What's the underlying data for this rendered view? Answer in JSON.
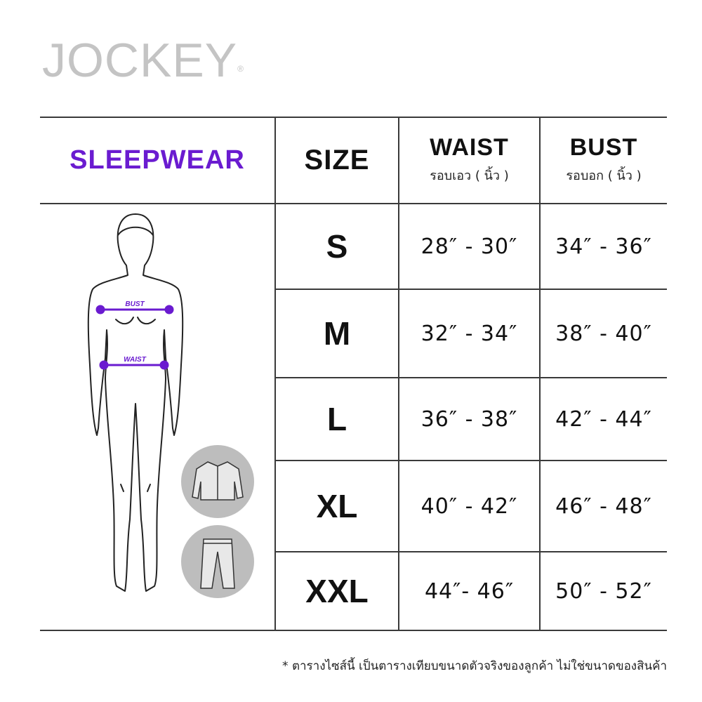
{
  "brand": {
    "logo": "JOCKEY",
    "registered": "®"
  },
  "table": {
    "category": "SLEEPWEAR",
    "headers": [
      {
        "label": "SIZE"
      },
      {
        "label": "WAIST",
        "sub": "รอบเอว ( นิ้ว )"
      },
      {
        "label": "BUST",
        "sub": "รอบอก ( นิ้ว )"
      }
    ],
    "rows": [
      {
        "size": "S",
        "waist": "28″ - 30″",
        "bust": "34″ - 36″"
      },
      {
        "size": "M",
        "waist": "32″ - 34″",
        "bust": "38″ - 40″"
      },
      {
        "size": "L",
        "waist": "36″ - 38″",
        "bust": "42″ - 44″"
      },
      {
        "size": "XL",
        "waist": "40″ - 42″",
        "bust": "46″ - 48″"
      },
      {
        "size": "XXL",
        "waist": "44″-  46″",
        "bust": "50″ - 52″"
      }
    ]
  },
  "figure": {
    "bust_label": "BUST",
    "waist_label": "WAIST",
    "icons": [
      "shirt-icon",
      "pants-icon"
    ]
  },
  "footnote": "* ตารางไซส์นี้ เป็นตารางเทียบขนาดตัวจริงของลูกค้า ไม่ใช่ขนาดของสินค้า",
  "colors": {
    "accent": "#6a1bd0",
    "logo": "#c4c4c4",
    "lines": "#3a3a3a",
    "icon_circle": "#bdbdbd"
  }
}
